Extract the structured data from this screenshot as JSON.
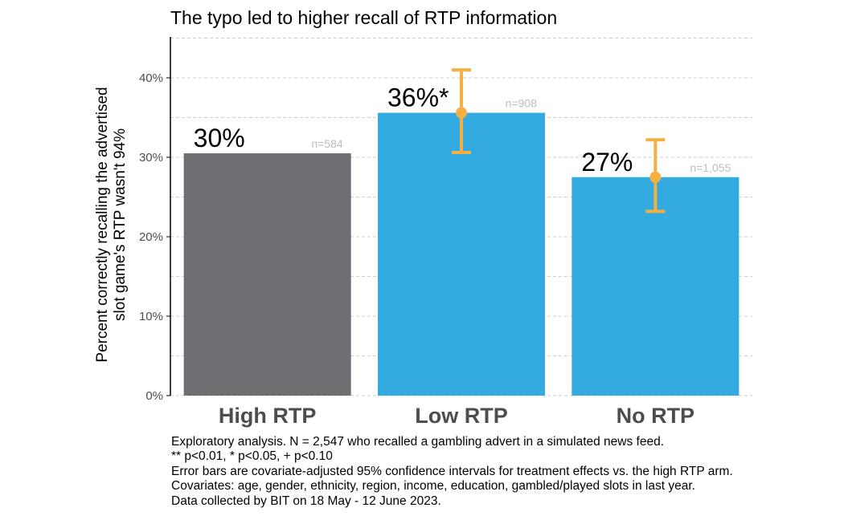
{
  "chart_data": {
    "type": "bar",
    "title": "The typo led to higher recall of RTP information",
    "xlabel": "",
    "ylabel": "Percent correctly recalling the advertised slot game's RTP wasn't 94%",
    "ylabel_lines": [
      "Percent correctly recalling the advertised",
      "slot game's RTP wasn't 94%"
    ],
    "ylim": [
      0,
      45
    ],
    "y_ticks": [
      0,
      10,
      20,
      30,
      40
    ],
    "y_tick_labels": [
      "0%",
      "10%",
      "20%",
      "30%",
      "40%"
    ],
    "grid": "horizontal dashed",
    "categories": [
      "High RTP",
      "Low RTP",
      "No RTP"
    ],
    "values": [
      30.5,
      35.6,
      27.5
    ],
    "bar_labels": [
      "30%",
      "36%*",
      "27%"
    ],
    "n_labels": [
      "n=584",
      "n=908",
      "n=1,055"
    ],
    "colors": [
      "#6d6e71",
      "#34abe0",
      "#34abe0"
    ],
    "error_bars": [
      null,
      {
        "point": 35.6,
        "low": 30.6,
        "high": 41.0
      },
      {
        "point": 27.5,
        "low": 23.2,
        "high": 32.2
      }
    ],
    "error_bar_color": "#f6b042"
  },
  "caption": [
    "Exploratory analysis. N = 2,547 who recalled a gambling advert in a simulated news feed.",
    "** p<0.01, * p<0.05, + p<0.10",
    "Error bars are covariate-adjusted 95% confidence intervals for treatment effects vs. the high RTP arm.",
    "Covariates: age, gender, ethnicity, region, income, education, gambled/played slots in last year.",
    "Data collected by BIT on 18 May - 12 June 2023."
  ]
}
